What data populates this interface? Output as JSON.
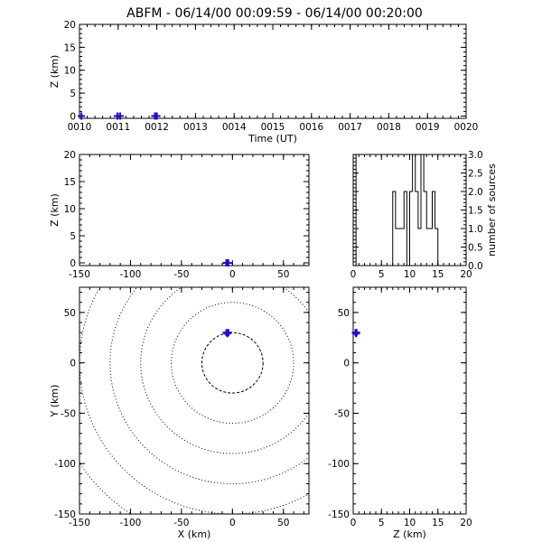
{
  "title": "ABFM - 06/14/00 00:09:59 - 06/14/00 00:20:00",
  "colors": {
    "background": "#ffffff",
    "axis": "#000000",
    "marker": "#2a00cc"
  },
  "chart_data": [
    {
      "id": "time-height",
      "type": "scatter",
      "xlabel": "Time (UT)",
      "ylabel": "Z (km)",
      "xlim": [
        10,
        20
      ],
      "ylim": [
        -0.5,
        20
      ],
      "xticks": [
        "0010",
        "0011",
        "0012",
        "0013",
        "0014",
        "0015",
        "0016",
        "0017",
        "0018",
        "0019",
        "0020"
      ],
      "yticks": [
        "0",
        "5",
        "10",
        "15",
        "20"
      ],
      "points": [
        {
          "x": 10.05,
          "y": 0.0
        },
        {
          "x": 10.98,
          "y": 0.0
        },
        {
          "x": 11.05,
          "y": 0.0
        },
        {
          "x": 11.95,
          "y": 0.0
        },
        {
          "x": 12.0,
          "y": 0.0
        }
      ]
    },
    {
      "id": "x-height",
      "type": "scatter",
      "xlabel": "",
      "ylabel": "Z (km)",
      "xlim": [
        -150,
        75
      ],
      "ylim": [
        -0.5,
        20
      ],
      "xticks": [
        "-150",
        "-100",
        "-50",
        "0",
        "50"
      ],
      "yticks": [
        "0",
        "5",
        "10",
        "15",
        "20"
      ],
      "points": [
        {
          "x": -5,
          "y": 0.0
        },
        {
          "x": -4,
          "y": 0.0
        },
        {
          "x": -6,
          "y": 0.0
        }
      ]
    },
    {
      "id": "height-histogram",
      "type": "line",
      "xlabel": "",
      "ylabel": "number of sources",
      "xlim": [
        0,
        20
      ],
      "ylim": [
        0,
        3
      ],
      "xticks": [
        "0",
        "5",
        "10",
        "15",
        "20"
      ],
      "yticks": [
        "0.0",
        "0.5",
        "1.0",
        "1.5",
        "2.0",
        "2.5",
        "3.0"
      ],
      "steps": [
        [
          0,
          3
        ],
        [
          0.5,
          0
        ],
        [
          7,
          2
        ],
        [
          7.5,
          1
        ],
        [
          8.5,
          1
        ],
        [
          9,
          2
        ],
        [
          9.5,
          0
        ],
        [
          10,
          2
        ],
        [
          10.5,
          3
        ],
        [
          11,
          2
        ],
        [
          11.5,
          1
        ],
        [
          12,
          3
        ],
        [
          12.5,
          2
        ],
        [
          13,
          1
        ],
        [
          14,
          2
        ],
        [
          14.5,
          1
        ],
        [
          15,
          0
        ],
        [
          20,
          0
        ]
      ]
    },
    {
      "id": "plan-view",
      "type": "scatter",
      "xlabel": "X (km)",
      "ylabel": "Y (km)",
      "xlim": [
        -150,
        75
      ],
      "ylim": [
        -150,
        75
      ],
      "xticks": [
        "-150",
        "-100",
        "-50",
        "0",
        "50"
      ],
      "yticks": [
        "-150",
        "-100",
        "-50",
        "0",
        "50"
      ],
      "range_rings_km": [
        30,
        60,
        90,
        120,
        150,
        180
      ],
      "points": [
        {
          "x": -5,
          "y": 29
        },
        {
          "x": -4,
          "y": 30
        },
        {
          "x": -6,
          "y": 30
        }
      ]
    },
    {
      "id": "height-y",
      "type": "scatter",
      "xlabel": "Z (km)",
      "ylabel": "",
      "xlim": [
        0,
        20
      ],
      "ylim": [
        -150,
        75
      ],
      "xticks": [
        "0",
        "5",
        "10",
        "15",
        "20"
      ],
      "yticks": [
        "-150",
        "-100",
        "-50",
        "0",
        "50"
      ],
      "points": [
        {
          "x": 0.5,
          "y": 29
        },
        {
          "x": 0.6,
          "y": 30
        },
        {
          "x": 0.4,
          "y": 30
        }
      ]
    }
  ]
}
